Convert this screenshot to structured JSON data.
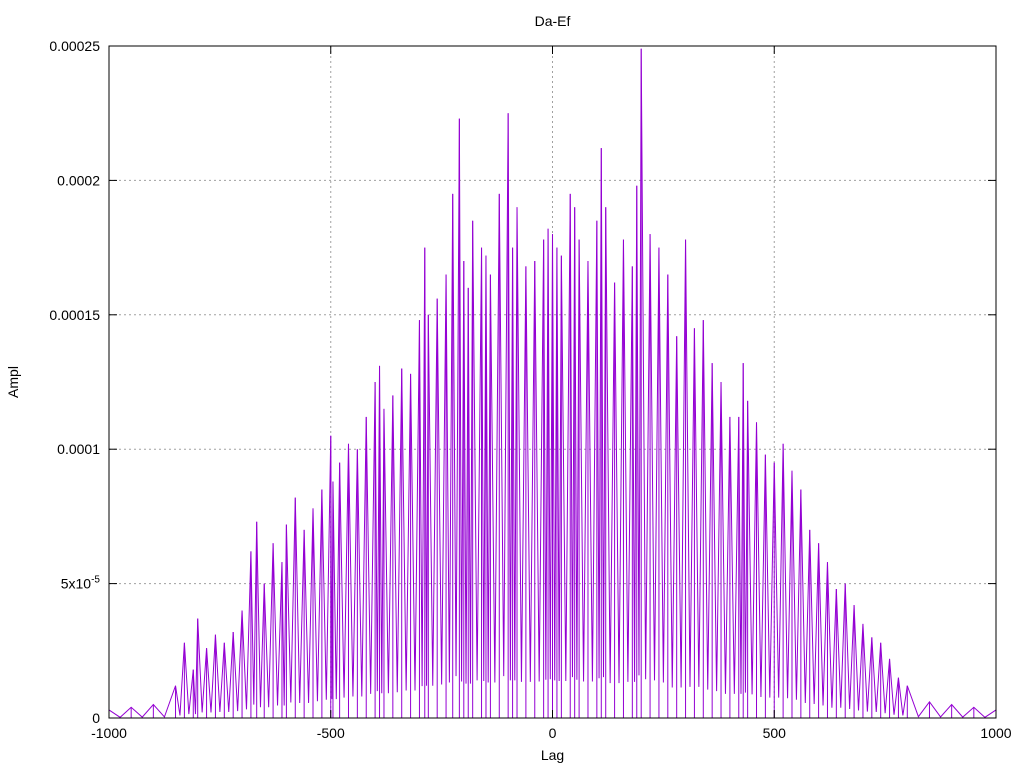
{
  "chart_data": {
    "type": "line",
    "title": "Da-Ef",
    "xlabel": "Lag",
    "ylabel": "Ampl",
    "xlim": [
      -1000,
      1000
    ],
    "ylim": [
      0,
      0.00025
    ],
    "grid": true,
    "legend": "none",
    "color": "#9400d3",
    "x_ticks": [
      {
        "value": -1000,
        "label": "-1000"
      },
      {
        "value": -500,
        "label": "-500"
      },
      {
        "value": 0,
        "label": "0"
      },
      {
        "value": 500,
        "label": "500"
      },
      {
        "value": 1000,
        "label": "1000"
      }
    ],
    "y_ticks": [
      {
        "value": 0,
        "label": "0"
      },
      {
        "value": 5e-05,
        "label": "5x10",
        "sup": "-5"
      },
      {
        "value": 0.0001,
        "label": "0.0001"
      },
      {
        "value": 0.00015,
        "label": "0.00015"
      },
      {
        "value": 0.0002,
        "label": "0.0002"
      },
      {
        "value": 0.00025,
        "label": "0.00025"
      }
    ],
    "series": [
      {
        "x": [
          -1000,
          -950,
          -900,
          -850,
          -830,
          -810,
          -800,
          -780,
          -760,
          -740,
          -720,
          -700,
          -680,
          -667,
          -650,
          -630,
          -610,
          -600,
          -580,
          -560,
          -540,
          -520,
          -500,
          -495,
          -480,
          -460,
          -440,
          -420,
          -400,
          -390,
          -380,
          -360,
          -340,
          -320,
          -300,
          -288,
          -280,
          -260,
          -240,
          -225,
          -210,
          -200,
          -190,
          -180,
          -160,
          -150,
          -140,
          -120,
          -100,
          -90,
          -80,
          -60,
          -40,
          -20,
          -10,
          0,
          10,
          20,
          40,
          50,
          60,
          80,
          100,
          110,
          120,
          140,
          160,
          180,
          190,
          200,
          220,
          240,
          260,
          280,
          300,
          320,
          340,
          360,
          380,
          400,
          420,
          430,
          440,
          460,
          480,
          500,
          520,
          540,
          560,
          580,
          600,
          620,
          640,
          660,
          680,
          700,
          720,
          740,
          760,
          780,
          800,
          850,
          900,
          950,
          1000
        ],
        "y": [
          3e-06,
          4e-06,
          5e-06,
          1.2e-05,
          2.8e-05,
          1.8e-05,
          3.7e-05,
          2.6e-05,
          3.1e-05,
          2.8e-05,
          3.2e-05,
          4e-05,
          6.2e-05,
          7.3e-05,
          5e-05,
          6.5e-05,
          5.8e-05,
          7.2e-05,
          8.2e-05,
          7e-05,
          7.8e-05,
          8.5e-05,
          0.000105,
          8.8e-05,
          9.5e-05,
          0.000102,
          0.0001,
          0.000112,
          0.000125,
          0.000131,
          0.000115,
          0.00012,
          0.00013,
          0.000128,
          0.000148,
          0.000175,
          0.00015,
          0.000156,
          0.000165,
          0.000195,
          0.000223,
          0.00017,
          0.00016,
          0.000185,
          0.000175,
          0.000172,
          0.000165,
          0.000195,
          0.000225,
          0.000175,
          0.00019,
          0.000168,
          0.00017,
          0.000178,
          0.000182,
          0.00018,
          0.000175,
          0.000172,
          0.000195,
          0.00019,
          0.000178,
          0.00017,
          0.000185,
          0.000212,
          0.00019,
          0.000162,
          0.000178,
          0.000168,
          0.000198,
          0.000249,
          0.00018,
          0.000175,
          0.000165,
          0.000142,
          0.000178,
          0.000145,
          0.000148,
          0.000132,
          0.000125,
          0.000112,
          0.000112,
          0.000132,
          0.000118,
          0.00011,
          9.8e-05,
          9.5e-05,
          0.000102,
          9.2e-05,
          8.5e-05,
          7e-05,
          6.5e-05,
          5.8e-05,
          4.8e-05,
          5e-05,
          4.2e-05,
          3.5e-05,
          3e-05,
          2.8e-05,
          2.2e-05,
          1.5e-05,
          1.2e-05,
          6e-06,
          5e-06,
          4e-06,
          3e-06
        ]
      }
    ]
  }
}
